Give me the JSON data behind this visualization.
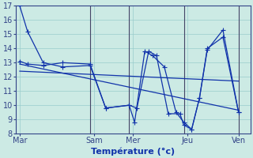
{
  "background_color": "#cceae4",
  "grid_color": "#99cccc",
  "line_color": "#1133aa",
  "xlabel": "Température (°c)",
  "xlabel_fontsize": 8,
  "tick_fontsize": 7,
  "ylim": [
    8,
    17
  ],
  "yticks": [
    8,
    9,
    10,
    11,
    12,
    13,
    14,
    15,
    16,
    17
  ],
  "xlim": [
    0,
    30
  ],
  "x_tick_positions": [
    0.5,
    10,
    15,
    22,
    28.5
  ],
  "x_tick_labels": [
    "Mar",
    "Sam",
    "Mer",
    "Jeu",
    "Ven"
  ],
  "vline_positions": [
    9.5,
    14.5,
    21.5,
    28.5
  ],
  "series1_x": [
    0.5,
    1.5,
    3.5,
    6.0,
    9.5,
    11.5,
    14.5,
    15.2,
    16.5,
    17.5,
    19.0,
    20.5,
    21.5,
    22.5,
    23.5,
    24.5,
    26.5,
    28.5
  ],
  "series1_y": [
    17.0,
    15.2,
    13.0,
    12.7,
    12.8,
    9.8,
    10.0,
    8.8,
    13.8,
    13.5,
    12.7,
    9.5,
    8.8,
    8.3,
    10.5,
    13.9,
    15.3,
    9.5
  ],
  "series2_x": [
    0.5,
    1.5,
    3.5,
    6.0,
    9.5,
    11.5,
    14.5,
    15.5,
    17.0,
    18.0,
    19.5,
    21.0,
    21.5,
    22.5,
    23.5,
    24.5,
    26.5,
    28.5
  ],
  "series2_y": [
    13.1,
    12.9,
    12.8,
    13.0,
    12.9,
    9.8,
    10.0,
    9.8,
    13.8,
    13.5,
    9.4,
    9.4,
    8.6,
    8.3,
    10.5,
    14.0,
    14.8,
    9.5
  ],
  "trend1_x": [
    0.5,
    28.5
  ],
  "trend1_y": [
    12.9,
    9.65
  ],
  "trend2_x": [
    0.5,
    28.5
  ],
  "trend2_y": [
    12.4,
    11.7
  ],
  "marker_size": 2.5
}
